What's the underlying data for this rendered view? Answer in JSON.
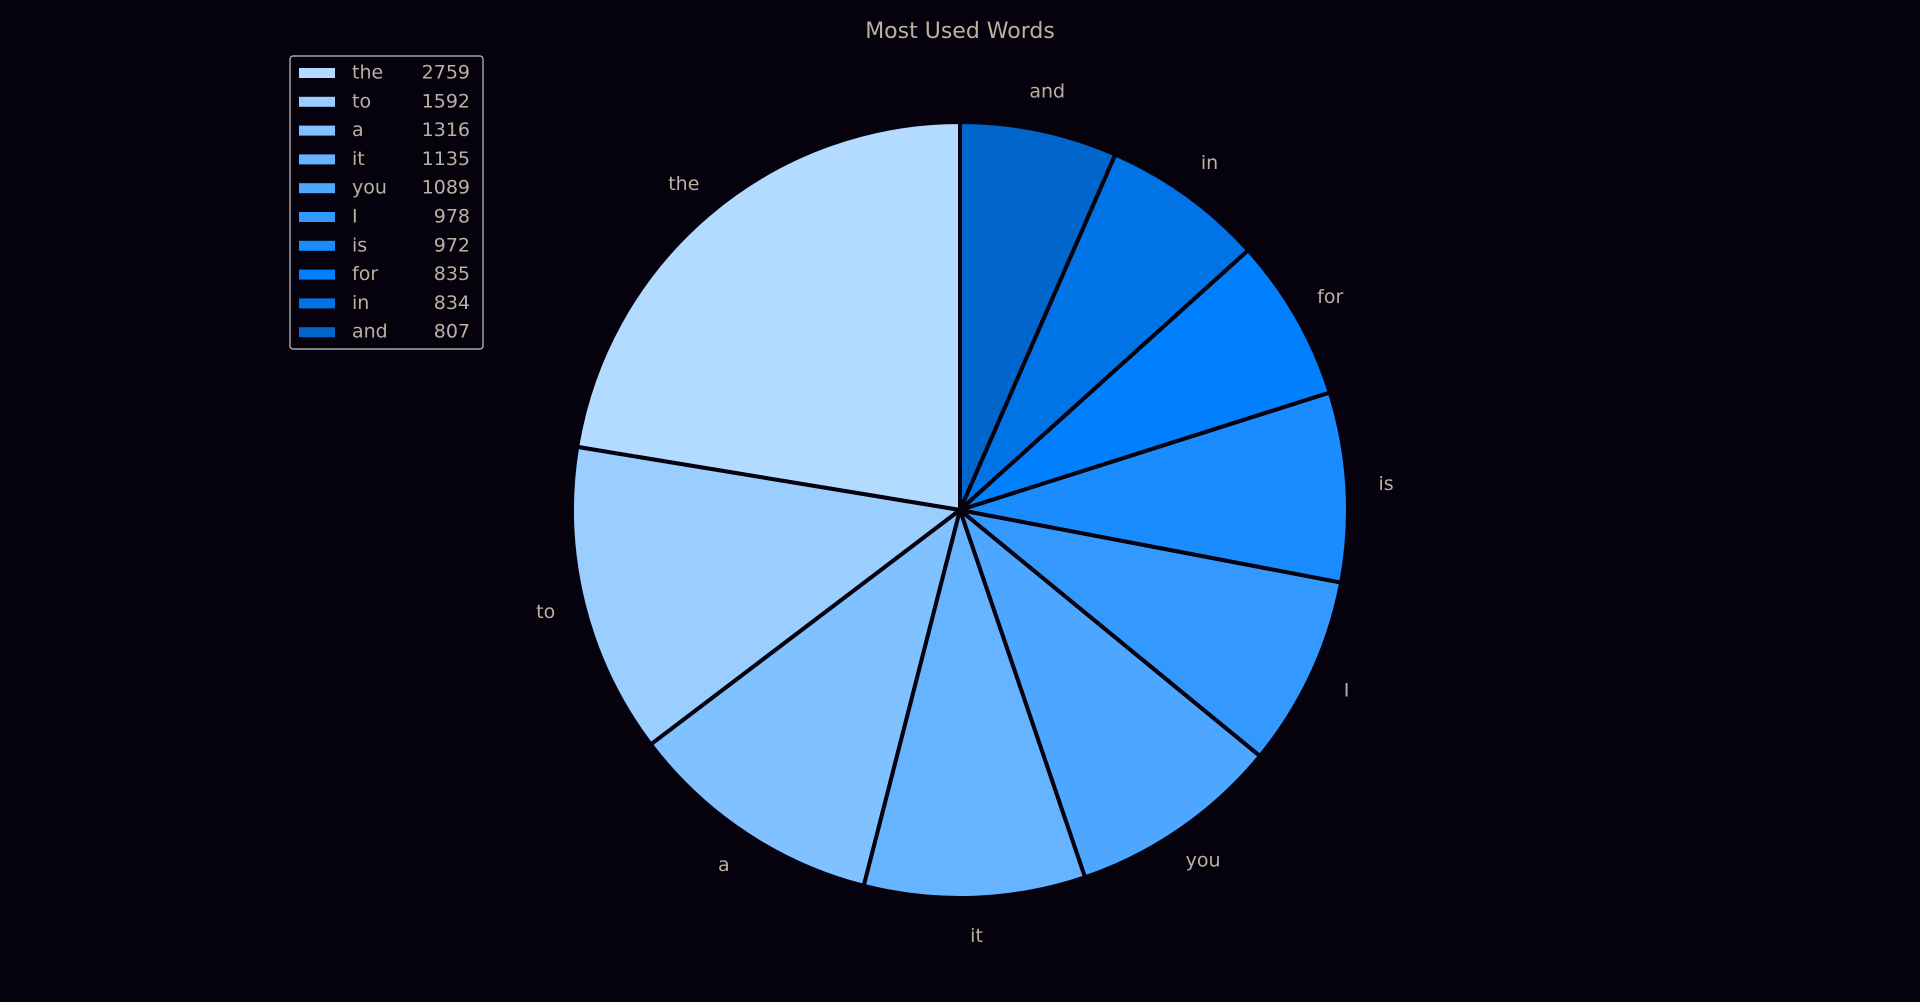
{
  "colors": {
    "background": "#05020d",
    "text": "#b8b2a3",
    "slice_edge": "#05020d",
    "legend_border": "#c8c8c8"
  },
  "chart_data": {
    "type": "pie",
    "title": "Most Used Words",
    "start_angle_deg": 90,
    "direction": "counterclockwise",
    "legend_position": "upper-left",
    "labels": [
      "the",
      "to",
      "a",
      "it",
      "you",
      "I",
      "is",
      "for",
      "in",
      "and"
    ],
    "values": [
      2759,
      1592,
      1316,
      1135,
      1089,
      978,
      972,
      835,
      834,
      807
    ],
    "legend_entries": [
      {
        "word": "the",
        "count": "2759"
      },
      {
        "word": "to",
        "count": "1592"
      },
      {
        "word": "a",
        "count": "1316"
      },
      {
        "word": "it",
        "count": "1135"
      },
      {
        "word": "you",
        "count": "1089"
      },
      {
        "word": "I",
        "count": "978"
      },
      {
        "word": "is",
        "count": "972"
      },
      {
        "word": "for",
        "count": "835"
      },
      {
        "word": "in",
        "count": "834"
      },
      {
        "word": "and",
        "count": "807"
      }
    ],
    "slice_colors": [
      "#b3daff",
      "#99ceff",
      "#80c1ff",
      "#66b3ff",
      "#4da6ff",
      "#3399ff",
      "#1a8cff",
      "#0080ff",
      "#0073e6",
      "#0066cc"
    ]
  }
}
